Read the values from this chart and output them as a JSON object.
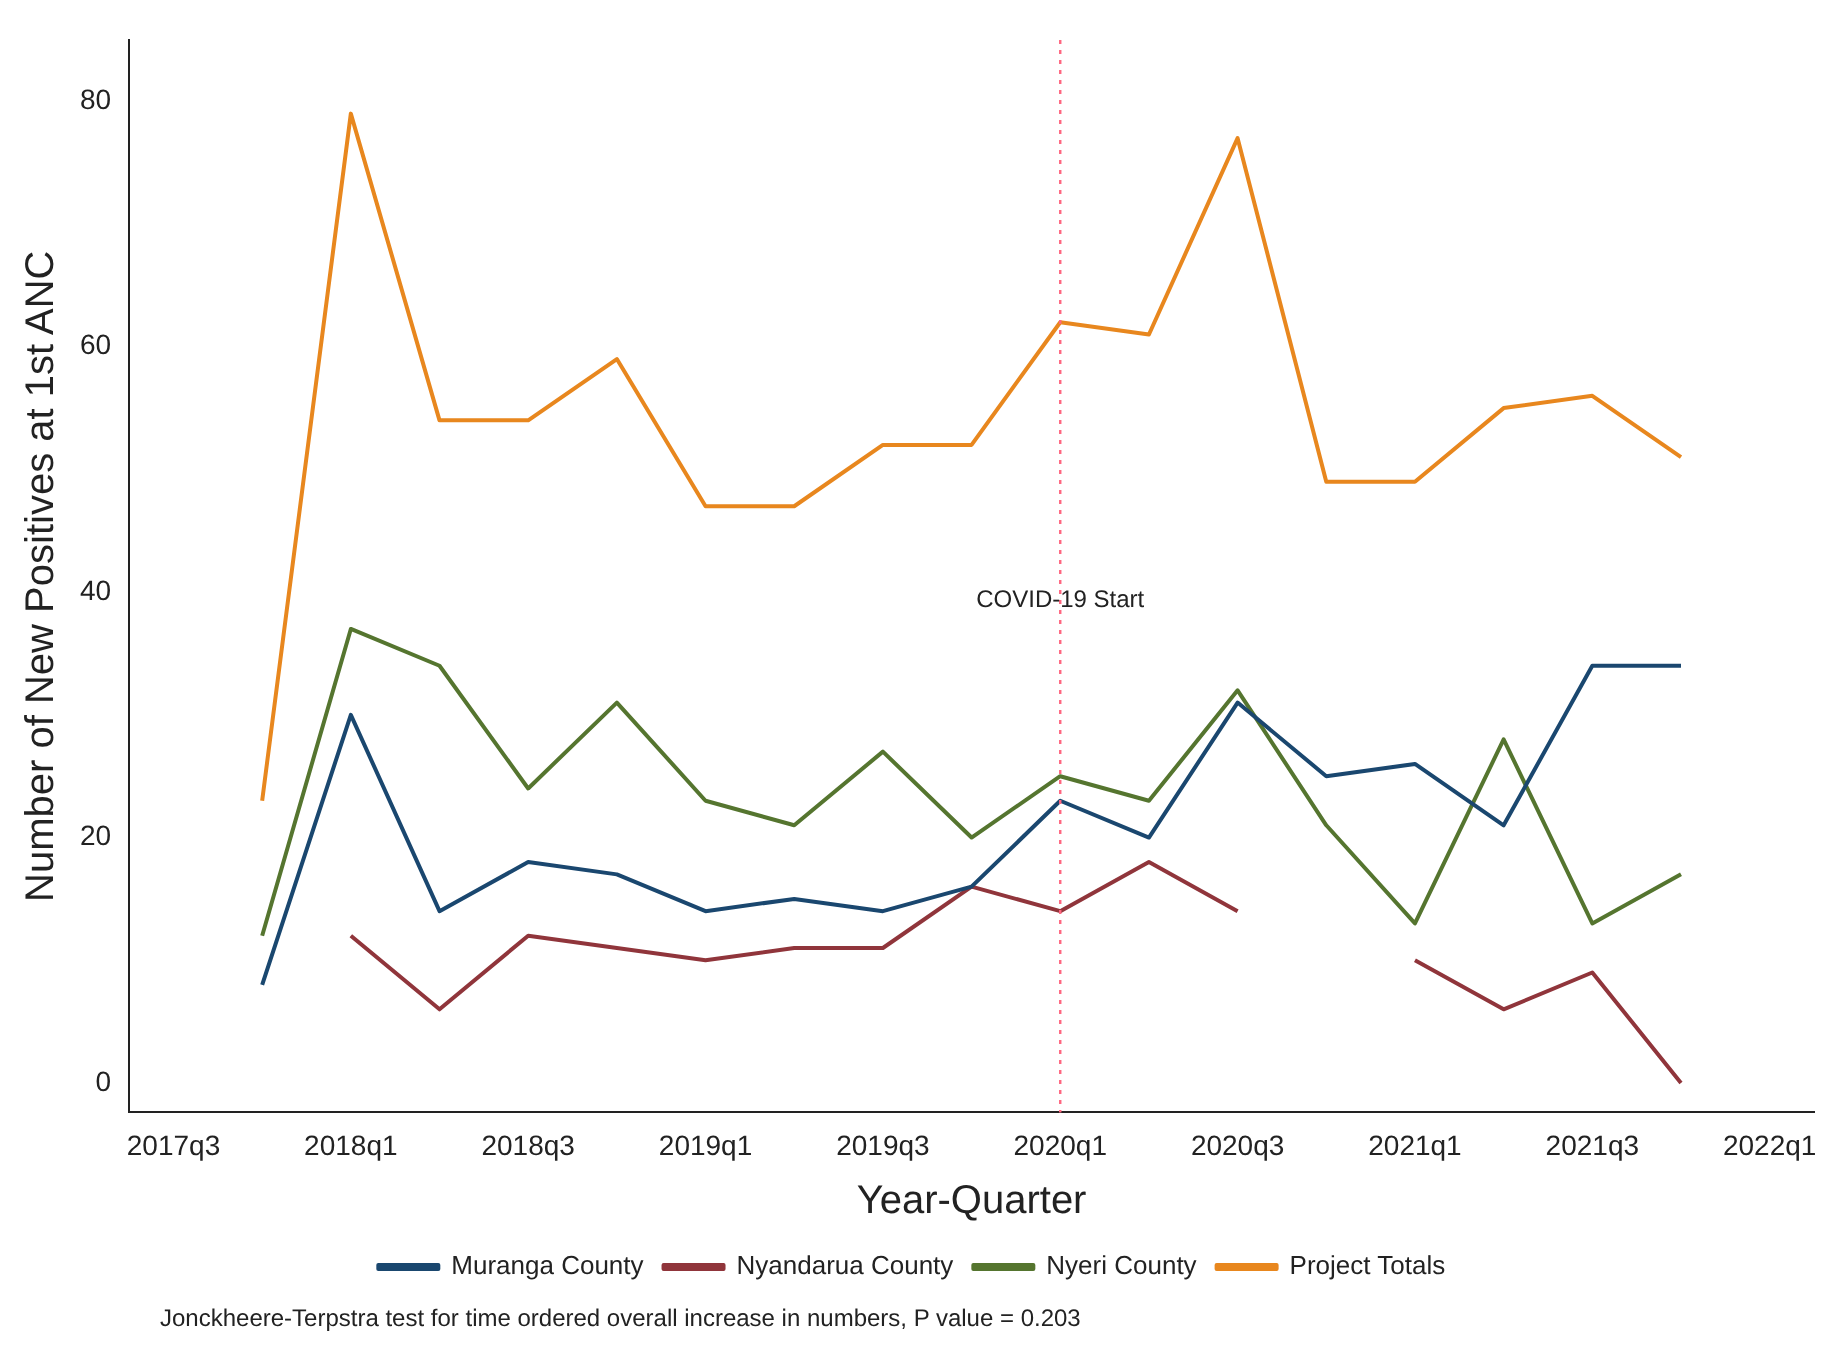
{
  "chart_data": {
    "type": "line",
    "xlabel": "Year-Quarter",
    "ylabel": "Number of New Positives at 1st ANC",
    "categories": [
      "2017q3",
      null,
      "2018q1",
      null,
      "2018q3",
      null,
      "2019q1",
      null,
      "2019q3",
      null,
      "2020q1",
      null,
      "2020q3",
      null,
      "2021q1",
      null,
      "2021q3",
      null,
      "2022q1"
    ],
    "series": [
      {
        "name": "Muranga County",
        "color": "#1a476f",
        "values": [
          null,
          8,
          30,
          14,
          18,
          17,
          14,
          15,
          14,
          16,
          23,
          20,
          31,
          25,
          26,
          21,
          34,
          34,
          null
        ]
      },
      {
        "name": "Nyandarua County",
        "color": "#90353b",
        "values": [
          null,
          null,
          12,
          6,
          12,
          11,
          10,
          11,
          11,
          16,
          14,
          18,
          14,
          null,
          10,
          6,
          9,
          0,
          null
        ]
      },
      {
        "name": "Nyeri County",
        "color": "#55752f",
        "values": [
          null,
          12,
          37,
          34,
          24,
          31,
          23,
          21,
          27,
          20,
          25,
          23,
          32,
          21,
          13,
          28,
          13,
          17,
          null
        ]
      },
      {
        "name": "Project Totals",
        "color": "#e8871e",
        "values": [
          null,
          23,
          79,
          54,
          54,
          59,
          47,
          47,
          52,
          52,
          62,
          61,
          77,
          49,
          49,
          55,
          56,
          51,
          null
        ]
      }
    ],
    "ylim": [
      -2.4,
      85
    ],
    "yticks": [
      0,
      20,
      40,
      60,
      80
    ],
    "grid": false,
    "legend": "bottom",
    "marker": "none",
    "line_style": "solid",
    "ref_lines": [
      {
        "axis": "x",
        "value": "2020q1",
        "label": "COVID-19 Start",
        "color": "#ff6680",
        "line_style": "dotted"
      }
    ],
    "annotations": [
      "Jonckheere-Terpstra test for time ordered overall increase in numbers, P value = 0.203"
    ]
  }
}
